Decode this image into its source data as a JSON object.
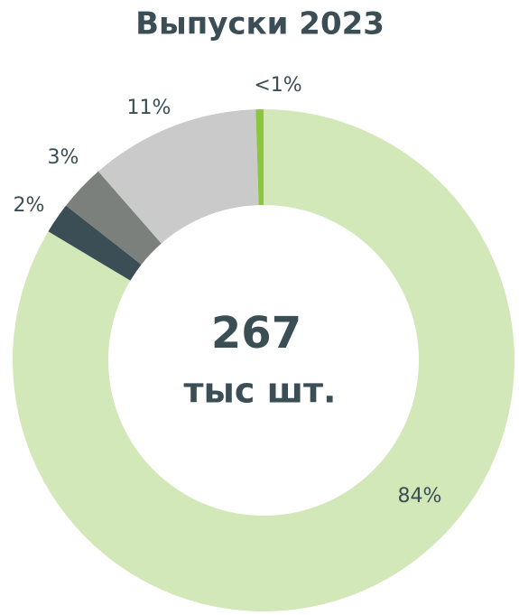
{
  "chart_data": {
    "type": "donut",
    "title": "Выпуски 2023",
    "total": 267,
    "total_unit": "тыс шт.",
    "categories": [
      null,
      null,
      null,
      null,
      null
    ],
    "values": [
      84,
      2,
      3,
      11,
      0.5
    ],
    "value_labels": [
      "84%",
      "2%",
      "3%",
      "11%",
      "<1%"
    ],
    "colors": [
      "#d3e8b8",
      "#3b4d55",
      "#7b807c",
      "#c9cac9",
      "#8cc540"
    ]
  }
}
